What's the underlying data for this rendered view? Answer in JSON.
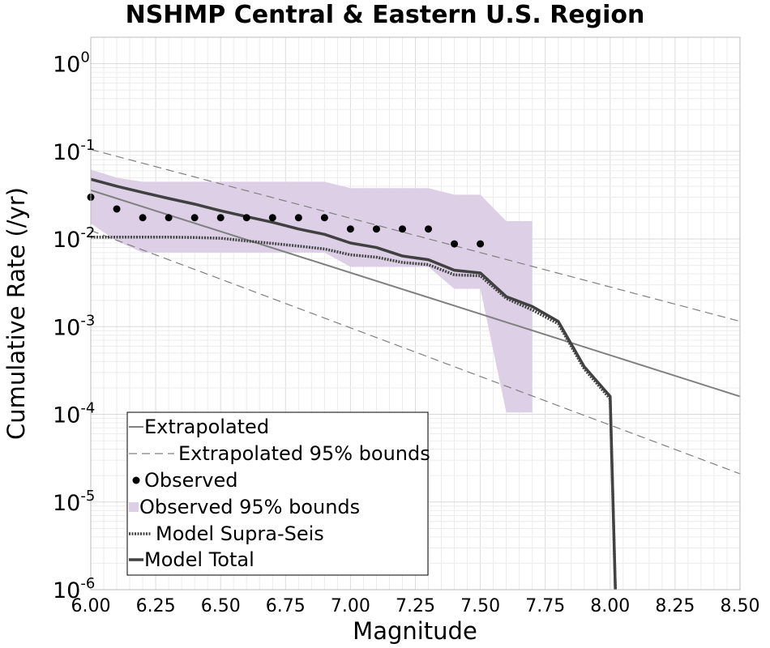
{
  "chart_data": {
    "type": "line",
    "title": "NSHMP Central & Eastern U.S. Region",
    "xlabel": "Magnitude",
    "ylabel": "Cumulative Rate (/yr)",
    "xlim": [
      6.0,
      8.5
    ],
    "ylim": [
      1e-06,
      2
    ],
    "yscale": "log",
    "grid": true,
    "legend_position": "bottom-left",
    "x_tick_labels": [
      "6.00",
      "6.25",
      "6.50",
      "6.75",
      "7.00",
      "7.25",
      "7.50",
      "7.75",
      "8.00",
      "8.25",
      "8.50"
    ],
    "y_ticks": [
      {
        "base": "10",
        "exp": "0"
      },
      {
        "base": "10",
        "exp": "-1"
      },
      {
        "base": "10",
        "exp": "-2"
      },
      {
        "base": "10",
        "exp": "-3"
      },
      {
        "base": "10",
        "exp": "-4"
      },
      {
        "base": "10",
        "exp": "-5"
      },
      {
        "base": "10",
        "exp": "-6"
      }
    ],
    "series": [
      {
        "name": "Extrapolated",
        "style": "solid-line",
        "color": "#808080",
        "x": [
          6.0,
          8.5
        ],
        "y": [
          0.036,
          0.00016
        ]
      },
      {
        "name": "Extrapolated 95% bounds",
        "style": "dashed-line",
        "color": "#808080",
        "bounds": [
          {
            "x": [
              6.0,
              8.5
            ],
            "y": [
              0.105,
              0.00115
            ]
          },
          {
            "x": [
              6.0,
              8.5
            ],
            "y": [
              0.0125,
              2.1e-05
            ]
          }
        ]
      },
      {
        "name": "Observed",
        "style": "points",
        "color": "#000000",
        "x": [
          6.0,
          6.1,
          6.2,
          6.3,
          6.4,
          6.5,
          6.6,
          6.7,
          6.8,
          6.9,
          7.0,
          7.1,
          7.2,
          7.3,
          7.4,
          7.5
        ],
        "y": [
          0.03,
          0.022,
          0.0175,
          0.0175,
          0.0175,
          0.0175,
          0.0175,
          0.0175,
          0.0175,
          0.0175,
          0.013,
          0.013,
          0.013,
          0.013,
          0.0088,
          0.0088
        ]
      },
      {
        "name": "Observed 95% bounds",
        "style": "band",
        "color": "#ddd0e6",
        "x": [
          6.0,
          6.1,
          6.2,
          6.3,
          6.4,
          6.5,
          6.6,
          6.7,
          6.8,
          6.9,
          7.0,
          7.1,
          7.2,
          7.3,
          7.4,
          7.5,
          7.6,
          7.7
        ],
        "upper": [
          0.062,
          0.05,
          0.045,
          0.045,
          0.045,
          0.045,
          0.045,
          0.045,
          0.045,
          0.045,
          0.038,
          0.038,
          0.038,
          0.038,
          0.032,
          0.032,
          0.016,
          0.016
        ],
        "lower": [
          0.015,
          0.0095,
          0.007,
          0.007,
          0.007,
          0.007,
          0.007,
          0.007,
          0.007,
          0.007,
          0.0048,
          0.0048,
          0.0048,
          0.0048,
          0.0027,
          0.0027,
          0.000105,
          0.000105
        ]
      },
      {
        "name": "Model Supra-Seis",
        "style": "dotted-line",
        "color": "#444444",
        "x": [
          6.0,
          6.1,
          6.2,
          6.3,
          6.4,
          6.5,
          6.6,
          6.7,
          6.8,
          6.9,
          7.0,
          7.1,
          7.2,
          7.3,
          7.4,
          7.5,
          7.6,
          7.7,
          7.8,
          7.9,
          8.0,
          8.02
        ],
        "y": [
          0.0105,
          0.0105,
          0.0105,
          0.0105,
          0.0104,
          0.0102,
          0.0095,
          0.0089,
          0.0083,
          0.0077,
          0.0066,
          0.0062,
          0.0054,
          0.0051,
          0.0039,
          0.0038,
          0.0021,
          0.00155,
          0.00108,
          0.00033,
          0.00015,
          1e-06
        ]
      },
      {
        "name": "Model Total",
        "style": "solid-line",
        "color": "#404040",
        "x": [
          6.0,
          6.1,
          6.2,
          6.3,
          6.4,
          6.5,
          6.6,
          6.7,
          6.8,
          6.9,
          7.0,
          7.1,
          7.2,
          7.3,
          7.4,
          7.5,
          7.6,
          7.7,
          7.8,
          7.9,
          8.0,
          8.02
        ],
        "y": [
          0.048,
          0.04,
          0.034,
          0.029,
          0.025,
          0.021,
          0.018,
          0.0155,
          0.013,
          0.0113,
          0.009,
          0.008,
          0.0064,
          0.0058,
          0.0044,
          0.0041,
          0.0022,
          0.0017,
          0.00115,
          0.00035,
          0.00016,
          1e-06
        ]
      }
    ]
  }
}
